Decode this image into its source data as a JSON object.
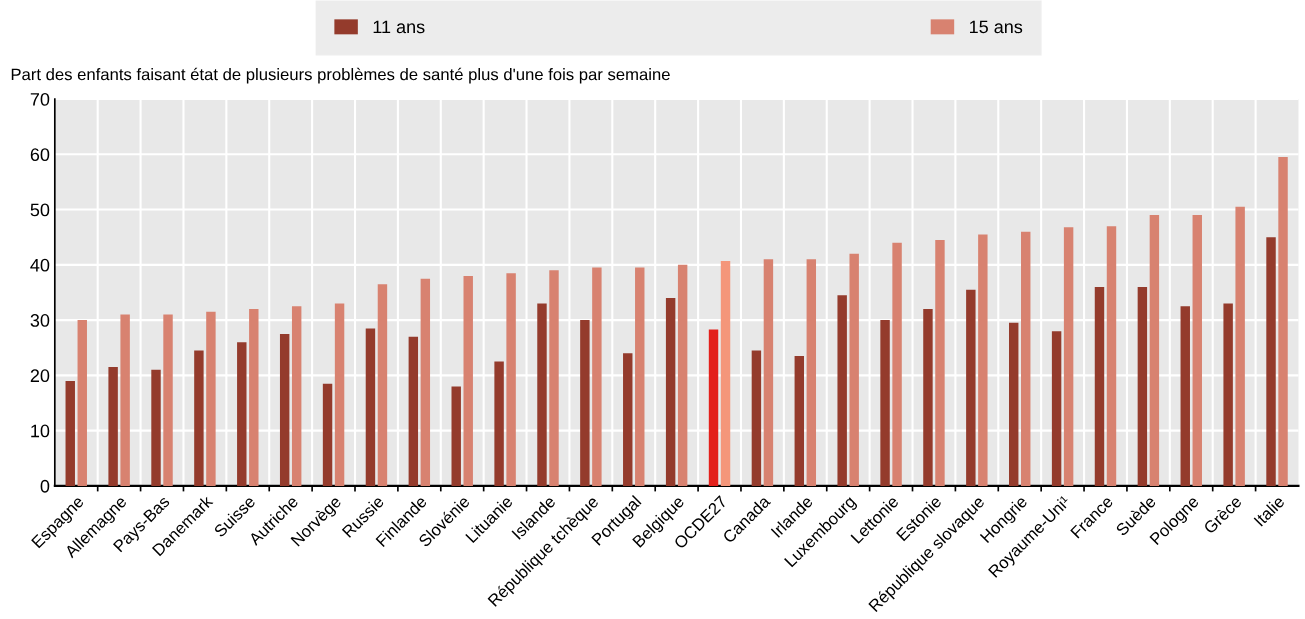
{
  "chart_data": {
    "type": "bar",
    "ylabel": "Part des enfants faisant état de plusieurs problèmes de santé plus d'une fois par semaine",
    "categories": [
      "Espagne",
      "Allemagne",
      "Pays-Bas",
      "Danemark",
      "Suisse",
      "Autriche",
      "Norvège",
      "Russie",
      "Finlande",
      "Slovénie",
      "Lituanie",
      "Islande",
      "République tchèque",
      "Portugal",
      "Belgique",
      "OCDE27",
      "Canada",
      "Irlande",
      "Luxembourg",
      "Lettonie",
      "Estonie",
      "République slovaque",
      "Hongrie",
      "Royaume-Uni¹",
      "France",
      "Suède",
      "Pologne",
      "Grèce",
      "Italie"
    ],
    "series": [
      {
        "name": "11 ans",
        "color": "#943b2c",
        "colors": [
          "#943b2c",
          "#943b2c",
          "#943b2c",
          "#943b2c",
          "#943b2c",
          "#943b2c",
          "#943b2c",
          "#943b2c",
          "#943b2c",
          "#943b2c",
          "#943b2c",
          "#943b2c",
          "#943b2c",
          "#943b2c",
          "#943b2c",
          "#e3201b",
          "#943b2c",
          "#943b2c",
          "#943b2c",
          "#943b2c",
          "#943b2c",
          "#943b2c",
          "#943b2c",
          "#943b2c",
          "#943b2c",
          "#943b2c",
          "#943b2c",
          "#943b2c",
          "#943b2c"
        ],
        "values": [
          19,
          21.5,
          21,
          24.5,
          26,
          27.5,
          18.5,
          28.5,
          27,
          18,
          22.5,
          33,
          30,
          24,
          34,
          28.3,
          24.5,
          23.5,
          34.5,
          30,
          32,
          35.5,
          29.5,
          28,
          36,
          36,
          32.5,
          33,
          45
        ]
      },
      {
        "name": "15 ans",
        "color": "#d88270",
        "colors": [
          "#d88270",
          "#d88270",
          "#d88270",
          "#d88270",
          "#d88270",
          "#d88270",
          "#d88270",
          "#d88270",
          "#d88270",
          "#d88270",
          "#d88270",
          "#d88270",
          "#d88270",
          "#d88270",
          "#d88270",
          "#f4967a",
          "#d88270",
          "#d88270",
          "#d88270",
          "#d88270",
          "#d88270",
          "#d88270",
          "#d88270",
          "#d88270",
          "#d88270",
          "#d88270",
          "#d88270",
          "#d88270",
          "#d88270"
        ],
        "values": [
          30,
          31,
          31,
          31.5,
          32,
          32.5,
          33,
          36.5,
          37.5,
          38,
          38.5,
          39,
          39.5,
          39.5,
          40,
          40.7,
          41,
          41,
          42,
          44,
          44.5,
          45.5,
          46,
          46.8,
          47,
          49,
          49,
          50.5,
          59.5
        ]
      }
    ],
    "ylim": [
      0,
      70
    ],
    "yticks": [
      0,
      10,
      20,
      30,
      40,
      50,
      60,
      70
    ],
    "grid": true,
    "legend": "top"
  }
}
